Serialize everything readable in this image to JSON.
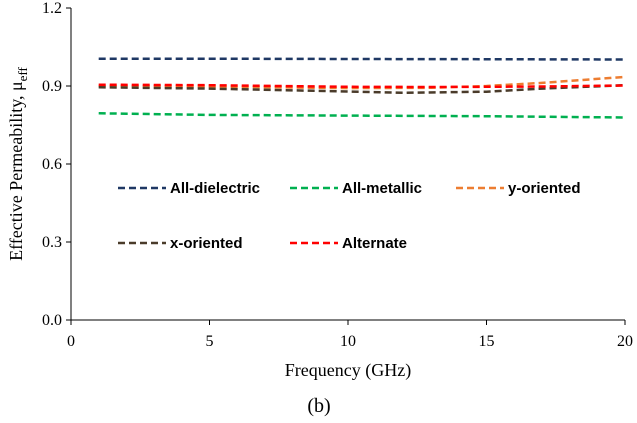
{
  "chart_data": {
    "type": "line",
    "xlabel": "Frequency (GHz)",
    "ylabel": "Effective Permeability, μ",
    "ylabel_sub": "eff",
    "xlim": [
      0,
      20
    ],
    "ylim": [
      0,
      1.2
    ],
    "x_ticks": [
      "0",
      "5",
      "10",
      "15",
      "20"
    ],
    "y_ticks": [
      "0.0",
      "0.3",
      "0.6",
      "0.9",
      "1.2"
    ],
    "grid": false,
    "legend_placement": "inside, middle-left, two rows",
    "caption": "(b)",
    "series": [
      {
        "name": "All-dielectric",
        "color": "#1f3864",
        "style": "dashed",
        "x": [
          1,
          5,
          10,
          15,
          20
        ],
        "y": [
          1.005,
          1.005,
          1.004,
          1.003,
          1.002
        ]
      },
      {
        "name": "All-metallic",
        "color": "#00b050",
        "style": "dashed",
        "x": [
          1,
          5,
          10,
          15,
          20
        ],
        "y": [
          0.795,
          0.789,
          0.786,
          0.784,
          0.779
        ]
      },
      {
        "name": "y-oriented",
        "color": "#ed7d31",
        "style": "dashed",
        "x": [
          1,
          5,
          10,
          13,
          15,
          17,
          20
        ],
        "y": [
          0.9,
          0.898,
          0.892,
          0.893,
          0.9,
          0.912,
          0.935
        ]
      },
      {
        "name": "x-oriented",
        "color": "#4a3b2a",
        "style": "dashed",
        "x": [
          1,
          5,
          10,
          12,
          15,
          17,
          20
        ],
        "y": [
          0.895,
          0.89,
          0.879,
          0.874,
          0.878,
          0.89,
          0.903
        ]
      },
      {
        "name": "Alternate",
        "color": "#ff0000",
        "style": "dashed",
        "x": [
          1,
          5,
          10,
          13,
          15,
          17,
          20
        ],
        "y": [
          0.905,
          0.903,
          0.897,
          0.896,
          0.897,
          0.898,
          0.902
        ]
      }
    ]
  }
}
